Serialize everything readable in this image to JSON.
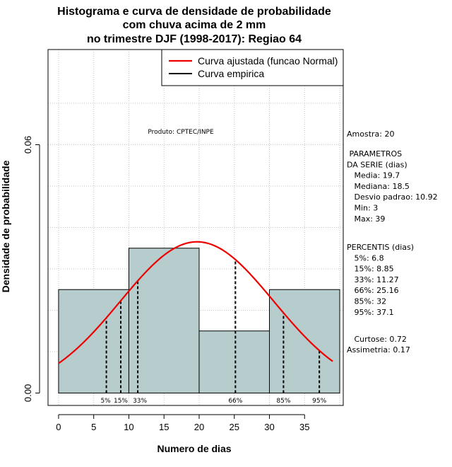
{
  "chart_data": {
    "type": "histogram",
    "title_lines": [
      "Histograma e curva de densidade de probabilidade",
      "com chuva acima de 2 mm",
      "no trimestre DJF (1998-2017): Regiao 64"
    ],
    "xlabel": "Numero de dias",
    "ylabel": "Densidade de probabilidade",
    "xlim": [
      -1.5,
      40.5
    ],
    "ylim": [
      -0.003,
      0.083
    ],
    "x_ticks": [
      0,
      5,
      10,
      15,
      20,
      25,
      30,
      35
    ],
    "x_tick_labels": [
      "0",
      "5",
      "10",
      "15",
      "20",
      "25",
      "30",
      "35"
    ],
    "y_ticks": [
      0.0,
      0.06
    ],
    "y_tick_labels": [
      "0.00",
      "0.06"
    ],
    "grid": true,
    "bins": [
      {
        "start": 0,
        "end": 10,
        "density": 0.025
      },
      {
        "start": 10,
        "end": 20,
        "density": 0.035
      },
      {
        "start": 20,
        "end": 30,
        "density": 0.015
      },
      {
        "start": 30,
        "end": 40,
        "density": 0.025
      }
    ],
    "bar_color": "#b7cdcd",
    "normal_fit": {
      "mean": 19.7,
      "sd": 10.92,
      "x_from": 0,
      "x_to": 39,
      "color": "#ee0000"
    },
    "percentiles": [
      {
        "label": "5%",
        "x": 6.8
      },
      {
        "label": "15%",
        "x": 8.85
      },
      {
        "label": "33%",
        "x": 11.27
      },
      {
        "label": "66%",
        "x": 25.16
      },
      {
        "label": "85%",
        "x": 32
      },
      {
        "label": "95%",
        "x": 37.1
      }
    ],
    "legend": {
      "position": "top-right",
      "entries": [
        {
          "label": "Curva ajustada (funcao Normal)",
          "color": "#ee0000"
        },
        {
          "label": "Curva empirica",
          "color": "#000000"
        }
      ]
    },
    "annotations": {
      "credit": "Produto: CPTEC/INPE"
    }
  },
  "side_panel": {
    "amostra": "Amostra: 20",
    "parametros_lines": [
      " PARAMETROS",
      "DA SERIE (dias)",
      "   Media: 19.7",
      "   Mediana: 18.5",
      "   Desvio padrao: 10.92",
      "   Min: 3",
      "   Max: 39"
    ],
    "percentis_lines": [
      "PERCENTIS (dias)",
      "   5%: 6.8",
      "   15%: 8.85",
      "   33%: 11.27",
      "   66%: 25.16",
      "   85%: 32",
      "   95%: 37.1"
    ],
    "curtose": "   Curtose: 0.72",
    "assimetria": "Assimetria: 0.17"
  }
}
